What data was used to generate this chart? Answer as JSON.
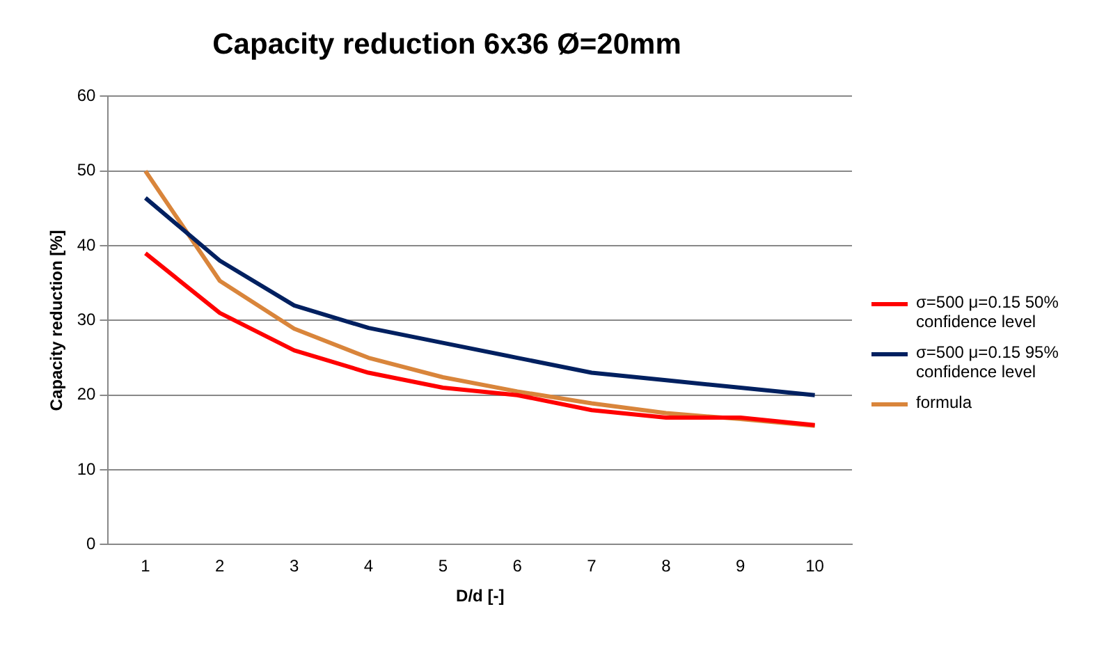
{
  "chart_data": {
    "type": "line",
    "title": "Capacity reduction 6x36 Ø=20mm",
    "xlabel": "D/d [-]",
    "ylabel": "Capacity reduction [%]",
    "categories": [
      "1",
      "2",
      "3",
      "4",
      "5",
      "6",
      "7",
      "8",
      "9",
      "10"
    ],
    "series": [
      {
        "name": "σ=500 μ=0.15 50% confidence level",
        "color": "#ff0000",
        "values": [
          39,
          31,
          26,
          23,
          21,
          20,
          18,
          17,
          17,
          16
        ]
      },
      {
        "name": "σ=500 μ=0.15 95% confidence level",
        "color": "#002060",
        "values": [
          46.4,
          38,
          32,
          29,
          27,
          25,
          23,
          22,
          21,
          20
        ]
      },
      {
        "name": "formula",
        "color": "#d9853b",
        "values": [
          50,
          35.3,
          28.9,
          25,
          22.4,
          20.5,
          18.9,
          17.6,
          16.8,
          15.9
        ]
      }
    ],
    "ylim": [
      0,
      60
    ],
    "yticks": [
      0,
      10,
      20,
      30,
      40,
      50,
      60
    ],
    "grid": "y",
    "legend": "right",
    "marker": "none"
  }
}
